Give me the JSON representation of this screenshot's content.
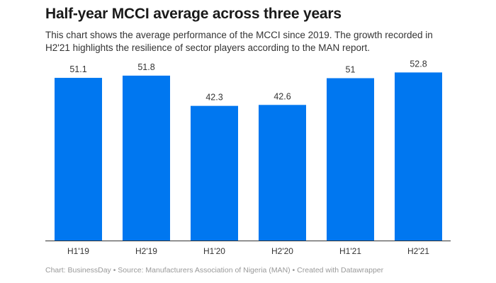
{
  "chart_data": {
    "type": "bar",
    "title": "Half-year MCCI average across three years",
    "subtitle": "This chart shows the average performance of the MCCI since 2019. The growth recorded in H2'21 highlights the resilience of sector players according to the MAN report.",
    "categories": [
      "H1'19",
      "H2'19",
      "H1'20",
      "H2'20",
      "H1'21",
      "H2'21"
    ],
    "values": [
      51.1,
      51.8,
      42.3,
      42.6,
      51,
      52.8
    ],
    "value_labels": [
      "51.1",
      "51.8",
      "42.3",
      "42.6",
      "51",
      "52.8"
    ],
    "xlabel": "",
    "ylabel": "",
    "ylim": [
      0,
      55
    ],
    "grid": false,
    "bar_color": "#0077f0",
    "footer": "Chart: BusinessDay • Source: Manufacturers Association of Nigeria (MAN) • Created with Datawrapper"
  }
}
